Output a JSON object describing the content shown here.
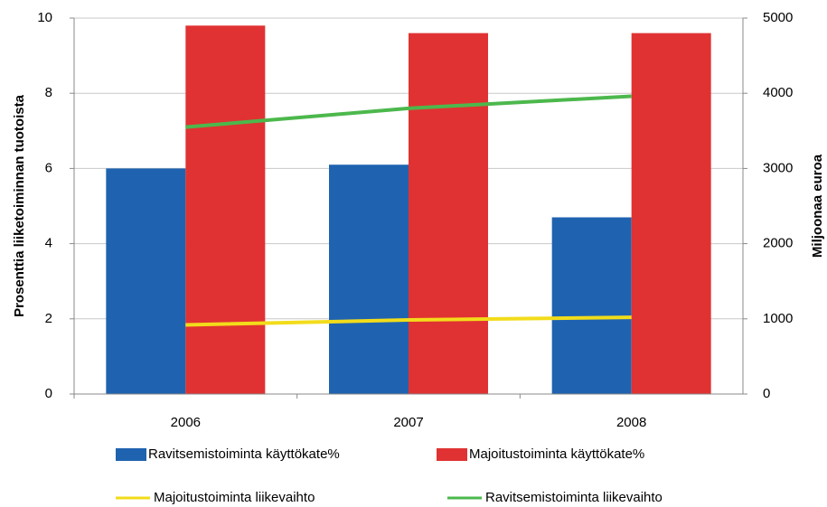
{
  "chart_data": {
    "type": "bar",
    "categories": [
      "2006",
      "2007",
      "2008"
    ],
    "ylabel": "Prosenttia liiketoiminnan tuotoista",
    "y2label": "Miljoonaa euroa",
    "ylim": [
      0,
      10
    ],
    "yticks": [
      0,
      2,
      4,
      6,
      8,
      10
    ],
    "y2lim": [
      0,
      5000
    ],
    "y2ticks": [
      0,
      1000,
      2000,
      3000,
      4000,
      5000
    ],
    "grid": true,
    "series": [
      {
        "name": "Ravitsemistoiminta käyttökate%",
        "type": "bar",
        "color": "#1f63b0",
        "values": [
          6.0,
          6.1,
          4.7
        ]
      },
      {
        "name": "Majoitustoiminta käyttökate%",
        "type": "bar",
        "color": "#e03232",
        "values": [
          9.8,
          9.6,
          9.6
        ]
      },
      {
        "name": "Majoitustoiminta liikevaihto",
        "type": "line",
        "axis": "y2",
        "color": "#f2dc1a",
        "values": [
          920,
          985,
          1020
        ]
      },
      {
        "name": "Ravitsemistoiminta liikevaihto",
        "type": "line",
        "axis": "y2",
        "color": "#4cb84c",
        "values": [
          3550,
          3800,
          3960
        ]
      }
    ]
  }
}
